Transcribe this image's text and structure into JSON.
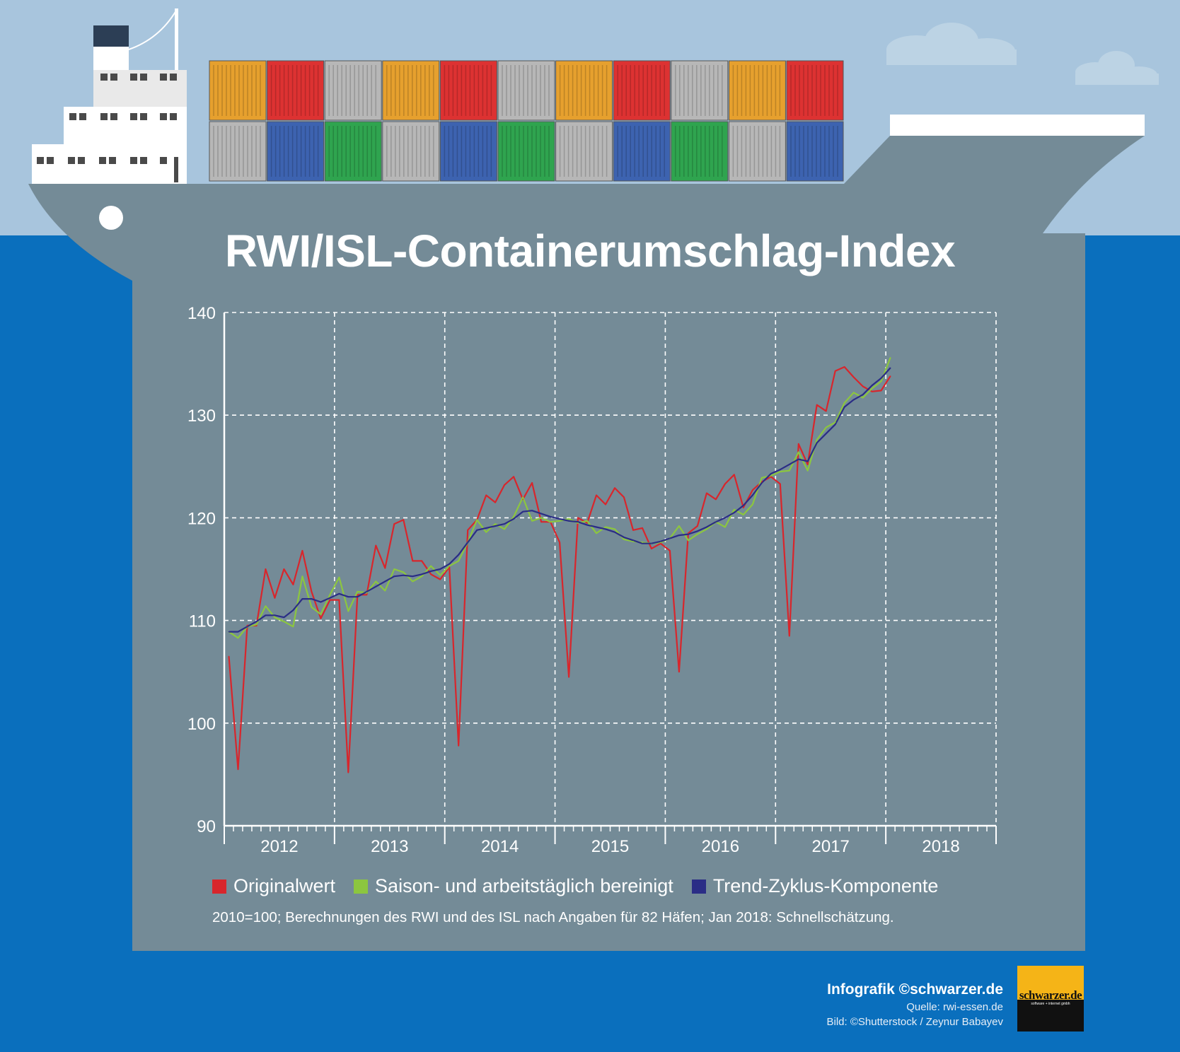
{
  "colors": {
    "sky": "#a8c5dd",
    "sea": "#0a6fbd",
    "hull": "#748b97",
    "original": "#d8262c",
    "seasonal": "#8cc63f",
    "trend": "#2b2d86"
  },
  "chart_data": {
    "type": "line",
    "title": "RWI/ISL-Containerumschlag-Index",
    "xlabel": "",
    "ylabel": "",
    "ylim": [
      90,
      140
    ],
    "yticks": [
      "90",
      "100",
      "110",
      "120",
      "130",
      "140"
    ],
    "years": [
      "2012",
      "2013",
      "2014",
      "2015",
      "2016",
      "2017",
      "2018"
    ],
    "x_start": "Jan 2012",
    "grid": true,
    "legend_position": "bottom",
    "series": [
      {
        "name": "Originalwert",
        "values": [
          106.5,
          95.5,
          109.5,
          109.5,
          115,
          112.2,
          115,
          113.5,
          116.8,
          112.8,
          110.2,
          112,
          112,
          95.2,
          112.5,
          112.5,
          117.3,
          115.1,
          119.4,
          119.8,
          115.8,
          115.8,
          114.5,
          114,
          115.2,
          97.8,
          118.8,
          119.8,
          122.2,
          121.5,
          123.2,
          124,
          121.8,
          123.4,
          119.6,
          119.6,
          117.6,
          104.5,
          120,
          119.5,
          122.2,
          121.3,
          122.9,
          122,
          118.8,
          119,
          117,
          117.5,
          116.8,
          105,
          118.5,
          119.2,
          122.4,
          121.8,
          123.3,
          124.2,
          121,
          122.7,
          123.5,
          124,
          123.3,
          108.5,
          127.2,
          125.2,
          131,
          130.4,
          134.3,
          134.7,
          133.7,
          132.8,
          132.3,
          132.4,
          133.8
        ]
      },
      {
        "name": "Saison- und arbeitstäglich bereinigt",
        "values": [
          108.9,
          108.3,
          109.4,
          109.6,
          111.4,
          110.3,
          109.9,
          109.4,
          114.3,
          111.3,
          110.6,
          112.5,
          114.2,
          110.9,
          112.8,
          112.7,
          113.8,
          112.9,
          115,
          114.7,
          113.8,
          114.3,
          115.3,
          114.4,
          115.3,
          115.8,
          117.6,
          119.8,
          118.6,
          119.4,
          118.9,
          120.1,
          122,
          119.7,
          120,
          119.6,
          119.7,
          119.9,
          119.5,
          119.7,
          118.5,
          119.1,
          118.9,
          117.9,
          117.7,
          117.6,
          117.5,
          117.6,
          118,
          119.2,
          117.8,
          118.4,
          118.9,
          119.6,
          119.1,
          120.8,
          120.3,
          121.3,
          123.9,
          124.1,
          124.5,
          124.6,
          126.4,
          124.6,
          127.6,
          128.8,
          129.3,
          131.2,
          132.2,
          131.7,
          132.6,
          133.3,
          135.6
        ]
      },
      {
        "name": "Trend-Zyklus-Komponente",
        "values": [
          108.9,
          108.9,
          109.4,
          109.9,
          110.5,
          110.5,
          110.3,
          111,
          112.1,
          112.1,
          111.8,
          112.2,
          112.6,
          112.3,
          112.3,
          112.8,
          113.3,
          113.8,
          114.3,
          114.4,
          114.3,
          114.5,
          114.8,
          115,
          115.5,
          116.4,
          117.6,
          118.8,
          119,
          119.2,
          119.4,
          119.9,
          120.6,
          120.7,
          120.4,
          120.1,
          119.9,
          119.7,
          119.6,
          119.3,
          119.1,
          118.9,
          118.6,
          118.1,
          117.8,
          117.5,
          117.5,
          117.7,
          118,
          118.3,
          118.4,
          118.7,
          119.1,
          119.6,
          120,
          120.5,
          121.2,
          122.2,
          123.4,
          124.3,
          124.7,
          125.2,
          125.7,
          125.5,
          127.3,
          128.2,
          129.1,
          130.8,
          131.5,
          132,
          132.9,
          133.6,
          134.6
        ]
      }
    ],
    "note": "2010=100; Berechnungen des RWI und des ISL nach Angaben für 82 Häfen; Jan 2018: Schnellschätzung."
  },
  "credit": {
    "title": "Infografik ©schwarzer.de",
    "source": "Quelle: rwi-essen.de",
    "image": "Bild: ©Shutterstock / Zeynur Babayev"
  },
  "logo": {
    "text": "schwarzer.de",
    "sub": "software + internet gmbh"
  }
}
